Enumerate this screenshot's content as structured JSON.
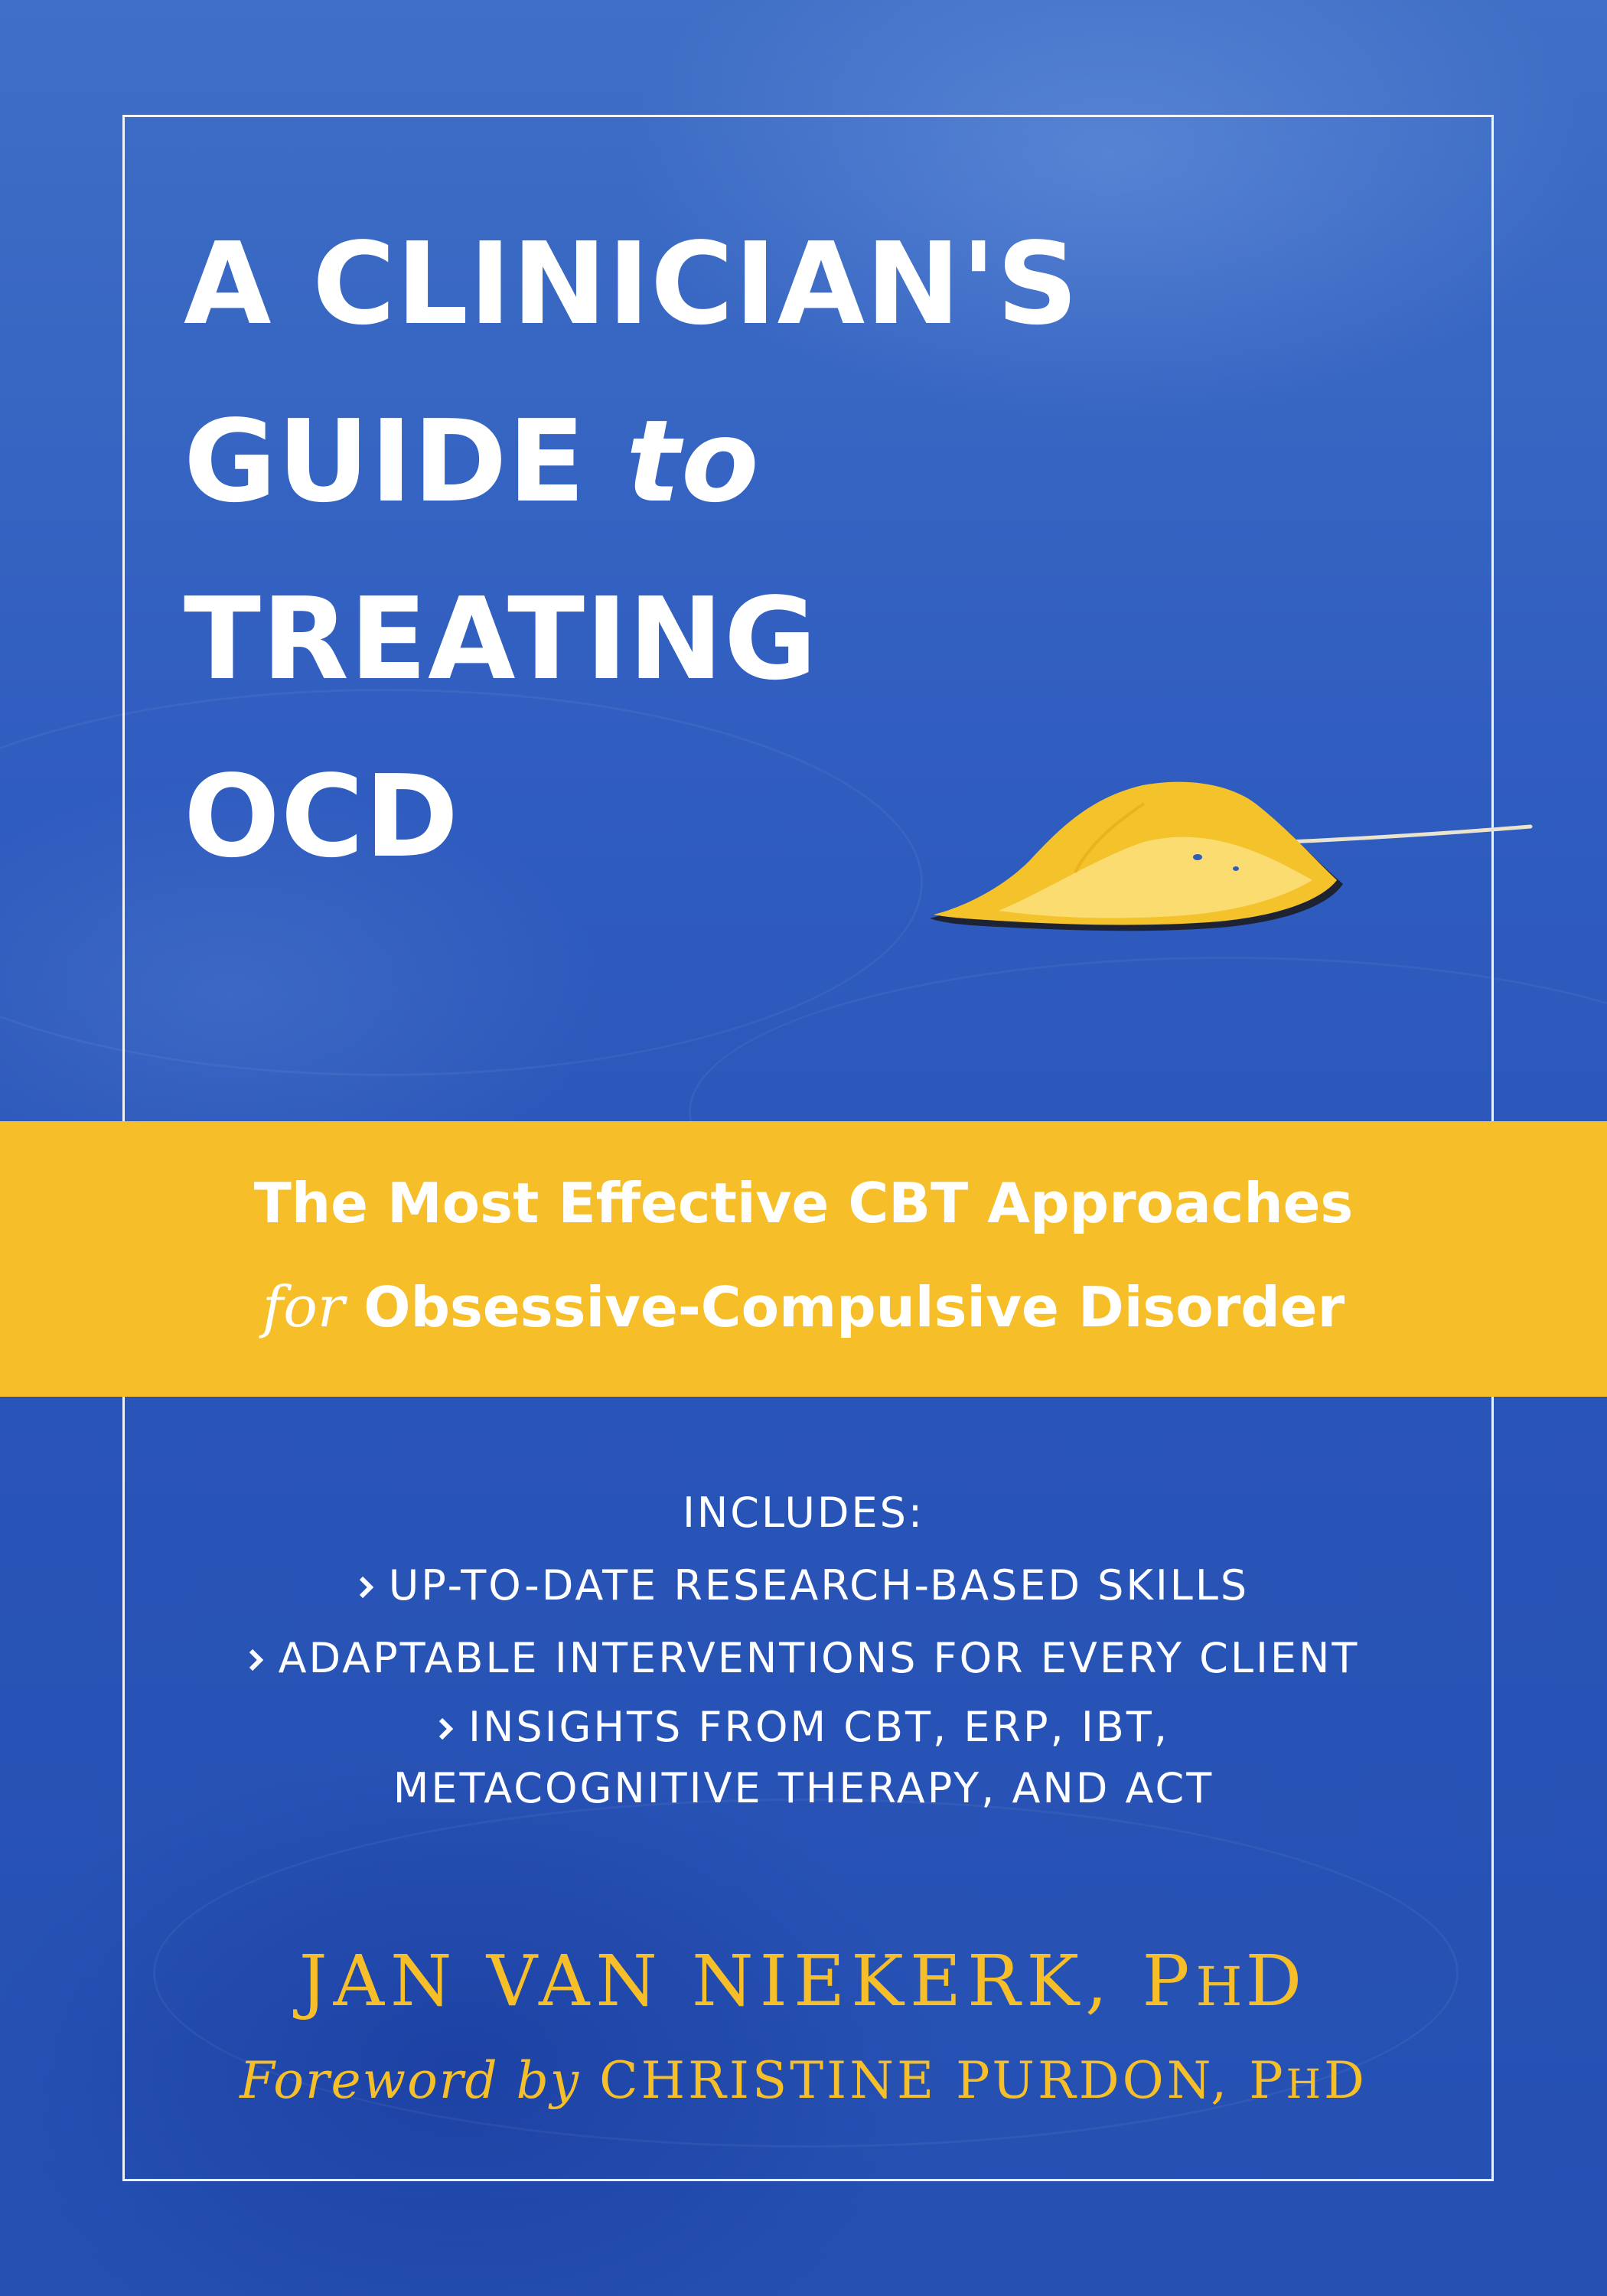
{
  "title": {
    "line1": "A CLINICIAN'S",
    "line2_main": "GUIDE",
    "line2_italic": "to",
    "line3": "TREATING",
    "line4": "OCD"
  },
  "subtitle": {
    "line1": "The Most Effective CBT Approaches",
    "line2_prefix": "for",
    "line2_main": "Obsessive-Compulsive Disorder"
  },
  "includes": {
    "heading": "INCLUDES:",
    "items": [
      "UP-TO-DATE RESEARCH-BASED SKILLS",
      "ADAPTABLE INTERVENTIONS FOR EVERY CLIENT",
      "INSIGHTS FROM CBT, ERP, IBT,",
      "METACOGNITIVE THERAPY, AND ACT"
    ]
  },
  "author": {
    "name": "JAN VAN NIEKERK, P",
    "suffix": "H",
    "tail": "D"
  },
  "foreword": {
    "prefix": "Foreword by",
    "name": "CHRISTINE PURDON, P",
    "suffix": "H",
    "tail": "D"
  },
  "colors": {
    "background_blue": "#2f5cbf",
    "band_yellow": "#f6bf2a",
    "author_gold": "#f6bf2a",
    "text_white": "#ffffff"
  },
  "icons": [
    "chevron-right-icon",
    "leaf-image"
  ]
}
